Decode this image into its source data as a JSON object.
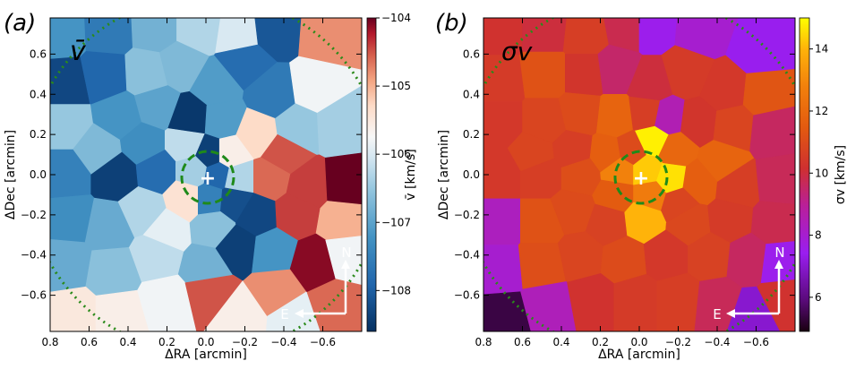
{
  "chart_data": [
    {
      "type": "heatmap",
      "subtype": "voronoi-binned velocity map",
      "panel_label": "(a)",
      "inset_label": "v̄",
      "xlabel": "ΔRA [arcmin]",
      "ylabel": "ΔDec [arcmin]",
      "xlim": [
        0.8,
        -0.8
      ],
      "ylim": [
        -0.78,
        0.78
      ],
      "xticks": [
        0.8,
        0.6,
        0.4,
        0.2,
        0.0,
        -0.2,
        -0.4,
        -0.6
      ],
      "xtick_labels": [
        "0.8",
        "0.6",
        "0.4",
        "0.2",
        "0.0",
        "−0.2",
        "−0.4",
        "−0.6"
      ],
      "yticks": [
        0.6,
        0.4,
        0.2,
        0.0,
        -0.2,
        -0.4,
        -0.6
      ],
      "ytick_labels": [
        "0.6",
        "0.4",
        "0.2",
        "0.0",
        "−0.2",
        "−0.4",
        "−0.6"
      ],
      "colorbar": {
        "label": "v̄ [km/s]",
        "range": [
          -108.6,
          -104
        ],
        "ticks": [
          -104,
          -105,
          -106,
          -107,
          -108
        ],
        "tick_labels": [
          "−104",
          "−105",
          "−106",
          "−107",
          "−108"
        ],
        "colormap": "RdBu_r"
      },
      "center_marker": {
        "x": 0.0,
        "y": 0.0,
        "symbol": "+"
      },
      "circle_radius_arcmin": 0.13,
      "compass": {
        "north": "N",
        "east": "E"
      },
      "cells": [
        {
          "x": 0.74,
          "y": 0.71,
          "v": -107.2
        },
        {
          "x": 0.5,
          "y": 0.72,
          "v": -107.6
        },
        {
          "x": 0.26,
          "y": 0.73,
          "v": -106.8
        },
        {
          "x": 0.04,
          "y": 0.73,
          "v": -106.3
        },
        {
          "x": -0.17,
          "y": 0.7,
          "v": -106.0
        },
        {
          "x": -0.35,
          "y": 0.72,
          "v": -108.1
        },
        {
          "x": -0.62,
          "y": 0.7,
          "v": -104.8
        },
        {
          "x": 0.72,
          "y": 0.45,
          "v": -108.3
        },
        {
          "x": 0.52,
          "y": 0.49,
          "v": -107.9
        },
        {
          "x": 0.3,
          "y": 0.5,
          "v": -106.6
        },
        {
          "x": 0.13,
          "y": 0.54,
          "v": -106.7
        },
        {
          "x": -0.05,
          "y": 0.44,
          "v": -107.1
        },
        {
          "x": -0.2,
          "y": 0.56,
          "v": -107.8
        },
        {
          "x": -0.34,
          "y": 0.4,
          "v": -107.6
        },
        {
          "x": -0.56,
          "y": 0.43,
          "v": -105.8
        },
        {
          "x": 0.72,
          "y": 0.25,
          "v": -106.5
        },
        {
          "x": 0.44,
          "y": 0.29,
          "v": -107.2
        },
        {
          "x": 0.25,
          "y": 0.34,
          "v": -107.0
        },
        {
          "x": 0.08,
          "y": 0.28,
          "v": -108.5
        },
        {
          "x": -0.08,
          "y": 0.27,
          "v": -107.1
        },
        {
          "x": -0.26,
          "y": 0.2,
          "v": -105.3
        },
        {
          "x": -0.47,
          "y": 0.23,
          "v": -106.5
        },
        {
          "x": -0.68,
          "y": 0.24,
          "v": -106.4
        },
        {
          "x": 0.55,
          "y": 0.12,
          "v": -106.7
        },
        {
          "x": 0.32,
          "y": 0.15,
          "v": -107.3
        },
        {
          "x": 0.1,
          "y": 0.15,
          "v": -106.2
        },
        {
          "x": -0.02,
          "y": 0.1,
          "v": -108.4
        },
        {
          "x": -0.12,
          "y": 0.1,
          "v": -105.6
        },
        {
          "x": -0.4,
          "y": 0.1,
          "v": -104.5
        },
        {
          "x": 0.72,
          "y": 0.0,
          "v": -107.5
        },
        {
          "x": 0.46,
          "y": 0.0,
          "v": -108.4
        },
        {
          "x": 0.25,
          "y": 0.02,
          "v": -107.8
        },
        {
          "x": 0.06,
          "y": 0.02,
          "v": -106.4
        },
        {
          "x": -0.06,
          "y": 0.0,
          "v": -107.9
        },
        {
          "x": -0.16,
          "y": -0.02,
          "v": -106.3
        },
        {
          "x": -0.33,
          "y": -0.02,
          "v": -104.6
        },
        {
          "x": -0.52,
          "y": -0.06,
          "v": -104.4
        },
        {
          "x": -0.72,
          "y": -0.05,
          "v": -104.0
        },
        {
          "x": 0.1,
          "y": -0.12,
          "v": -105.4
        },
        {
          "x": -0.02,
          "y": -0.12,
          "v": -107.5
        },
        {
          "x": -0.14,
          "y": -0.13,
          "v": -108.2
        },
        {
          "x": 0.7,
          "y": -0.22,
          "v": -107.3
        },
        {
          "x": 0.5,
          "y": -0.26,
          "v": -106.9
        },
        {
          "x": 0.32,
          "y": -0.18,
          "v": -106.3
        },
        {
          "x": 0.2,
          "y": -0.28,
          "v": -105.9
        },
        {
          "x": -0.04,
          "y": -0.26,
          "v": -106.6
        },
        {
          "x": -0.26,
          "y": -0.2,
          "v": -108.3
        },
        {
          "x": -0.46,
          "y": -0.19,
          "v": -104.4
        },
        {
          "x": -0.7,
          "y": -0.23,
          "v": -105.0
        },
        {
          "x": 0.72,
          "y": -0.44,
          "v": -106.9
        },
        {
          "x": 0.48,
          "y": -0.48,
          "v": -106.6
        },
        {
          "x": 0.25,
          "y": -0.4,
          "v": -106.2
        },
        {
          "x": 0.0,
          "y": -0.46,
          "v": -106.8
        },
        {
          "x": -0.16,
          "y": -0.36,
          "v": -108.4
        },
        {
          "x": -0.34,
          "y": -0.38,
          "v": -107.2
        },
        {
          "x": -0.56,
          "y": -0.44,
          "v": -104.1
        },
        {
          "x": -0.72,
          "y": -0.4,
          "v": -105.8
        },
        {
          "x": 0.68,
          "y": -0.7,
          "v": -105.5
        },
        {
          "x": 0.45,
          "y": -0.7,
          "v": -105.6
        },
        {
          "x": 0.2,
          "y": -0.63,
          "v": -105.8
        },
        {
          "x": -0.02,
          "y": -0.58,
          "v": -104.5
        },
        {
          "x": -0.18,
          "y": -0.7,
          "v": -105.6
        },
        {
          "x": -0.36,
          "y": -0.58,
          "v": -104.8
        },
        {
          "x": -0.45,
          "y": -0.72,
          "v": -105.9
        },
        {
          "x": -0.66,
          "y": -0.65,
          "v": -104.6
        }
      ]
    },
    {
      "type": "heatmap",
      "subtype": "voronoi-binned velocity dispersion map",
      "panel_label": "(b)",
      "inset_label": "σv",
      "xlabel": "ΔRA [arcmin]",
      "ylabel": "ΔDec [arcmin]",
      "xlim": [
        0.8,
        -0.8
      ],
      "ylim": [
        -0.78,
        0.78
      ],
      "xticks": [
        0.8,
        0.6,
        0.4,
        0.2,
        0.0,
        -0.2,
        -0.4,
        -0.6
      ],
      "xtick_labels": [
        "0.8",
        "0.6",
        "0.4",
        "0.2",
        "0.0",
        "−0.2",
        "−0.4",
        "−0.6"
      ],
      "yticks": [
        0.6,
        0.4,
        0.2,
        0.0,
        -0.2,
        -0.4,
        -0.6
      ],
      "ytick_labels": [
        "0.6",
        "0.4",
        "0.2",
        "0.0",
        "−0.2",
        "−0.4",
        "−0.6"
      ],
      "colorbar": {
        "label": "σv [km/s]",
        "range": [
          4.9,
          15
        ],
        "ticks": [
          6,
          8,
          10,
          12,
          14
        ],
        "tick_labels": [
          "6",
          "8",
          "10",
          "12",
          "14"
        ],
        "colormap": "gnuplot"
      },
      "center_marker": {
        "x": 0.0,
        "y": 0.0,
        "symbol": "+"
      },
      "circle_radius_arcmin": 0.13,
      "compass": {
        "north": "N",
        "east": "E"
      },
      "cells": [
        {
          "x": 0.72,
          "y": 0.72,
          "s": 10.2
        },
        {
          "x": 0.48,
          "y": 0.72,
          "s": 10.0
        },
        {
          "x": 0.28,
          "y": 0.7,
          "s": 10.6
        },
        {
          "x": 0.06,
          "y": 0.74,
          "s": 9.8
        },
        {
          "x": -0.06,
          "y": 0.74,
          "s": 7.5
        },
        {
          "x": -0.32,
          "y": 0.72,
          "s": 8.0
        },
        {
          "x": -0.62,
          "y": 0.62,
          "s": 7.4
        },
        {
          "x": 0.72,
          "y": 0.47,
          "s": 10.5
        },
        {
          "x": 0.48,
          "y": 0.5,
          "s": 11.2
        },
        {
          "x": 0.28,
          "y": 0.5,
          "s": 10.3
        },
        {
          "x": 0.12,
          "y": 0.52,
          "s": 9.5
        },
        {
          "x": -0.06,
          "y": 0.45,
          "s": 10.0
        },
        {
          "x": -0.24,
          "y": 0.5,
          "s": 10.5
        },
        {
          "x": -0.44,
          "y": 0.42,
          "s": 10.4
        },
        {
          "x": -0.64,
          "y": 0.4,
          "s": 11.3
        },
        {
          "x": 0.72,
          "y": 0.26,
          "s": 10.4
        },
        {
          "x": 0.48,
          "y": 0.26,
          "s": 10.8
        },
        {
          "x": 0.3,
          "y": 0.3,
          "s": 11.0
        },
        {
          "x": 0.12,
          "y": 0.28,
          "s": 11.8
        },
        {
          "x": -0.04,
          "y": 0.3,
          "s": 10.6
        },
        {
          "x": -0.14,
          "y": 0.28,
          "s": 8.5
        },
        {
          "x": -0.3,
          "y": 0.26,
          "s": 10.3
        },
        {
          "x": -0.48,
          "y": 0.24,
          "s": 10.8
        },
        {
          "x": -0.68,
          "y": 0.22,
          "s": 9.6
        },
        {
          "x": 0.54,
          "y": 0.1,
          "s": 10.8
        },
        {
          "x": 0.34,
          "y": 0.12,
          "s": 10.6
        },
        {
          "x": 0.16,
          "y": 0.1,
          "s": 11.6
        },
        {
          "x": 0.04,
          "y": 0.12,
          "s": 11.0
        },
        {
          "x": -0.07,
          "y": 0.17,
          "s": 14.8
        },
        {
          "x": -0.18,
          "y": 0.12,
          "s": 11.9
        },
        {
          "x": -0.42,
          "y": 0.06,
          "s": 11.8
        },
        {
          "x": 0.72,
          "y": 0.0,
          "s": 10.4
        },
        {
          "x": 0.5,
          "y": 0.0,
          "s": 10.6
        },
        {
          "x": 0.3,
          "y": 0.0,
          "s": 11.1
        },
        {
          "x": 0.1,
          "y": 0.02,
          "s": 12.8
        },
        {
          "x": -0.04,
          "y": 0.02,
          "s": 14.3
        },
        {
          "x": -0.16,
          "y": -0.02,
          "s": 14.6
        },
        {
          "x": -0.3,
          "y": -0.04,
          "s": 11.6
        },
        {
          "x": -0.5,
          "y": -0.06,
          "s": 10.6
        },
        {
          "x": -0.72,
          "y": -0.04,
          "s": 9.7
        },
        {
          "x": 0.12,
          "y": -0.1,
          "s": 11.5
        },
        {
          "x": -0.06,
          "y": -0.1,
          "s": 12.6
        },
        {
          "x": -0.2,
          "y": -0.14,
          "s": 10.8
        },
        {
          "x": 0.72,
          "y": -0.24,
          "s": 8.3
        },
        {
          "x": 0.5,
          "y": -0.24,
          "s": 11.2
        },
        {
          "x": 0.34,
          "y": -0.18,
          "s": 11.0
        },
        {
          "x": 0.16,
          "y": -0.24,
          "s": 10.7
        },
        {
          "x": -0.02,
          "y": -0.22,
          "s": 14.0
        },
        {
          "x": -0.26,
          "y": -0.24,
          "s": 10.9
        },
        {
          "x": -0.46,
          "y": -0.22,
          "s": 10.5
        },
        {
          "x": -0.7,
          "y": -0.24,
          "s": 9.8
        },
        {
          "x": 0.72,
          "y": -0.46,
          "s": 8.0
        },
        {
          "x": 0.5,
          "y": -0.44,
          "s": 11.1
        },
        {
          "x": 0.3,
          "y": -0.4,
          "s": 10.8
        },
        {
          "x": 0.08,
          "y": -0.42,
          "s": 11.0
        },
        {
          "x": -0.14,
          "y": -0.4,
          "s": 10.4
        },
        {
          "x": -0.36,
          "y": -0.4,
          "s": 10.7
        },
        {
          "x": -0.56,
          "y": -0.42,
          "s": 9.6
        },
        {
          "x": -0.72,
          "y": -0.44,
          "s": 7.5
        },
        {
          "x": 0.7,
          "y": -0.72,
          "s": 5.4
        },
        {
          "x": 0.46,
          "y": -0.66,
          "s": 8.4
        },
        {
          "x": 0.24,
          "y": -0.62,
          "s": 10.2
        },
        {
          "x": 0.02,
          "y": -0.62,
          "s": 10.5
        },
        {
          "x": -0.2,
          "y": -0.62,
          "s": 10.6
        },
        {
          "x": -0.4,
          "y": -0.64,
          "s": 9.7
        },
        {
          "x": -0.58,
          "y": -0.7,
          "s": 7.0
        },
        {
          "x": -0.74,
          "y": -0.62,
          "s": 10.2
        }
      ]
    }
  ]
}
